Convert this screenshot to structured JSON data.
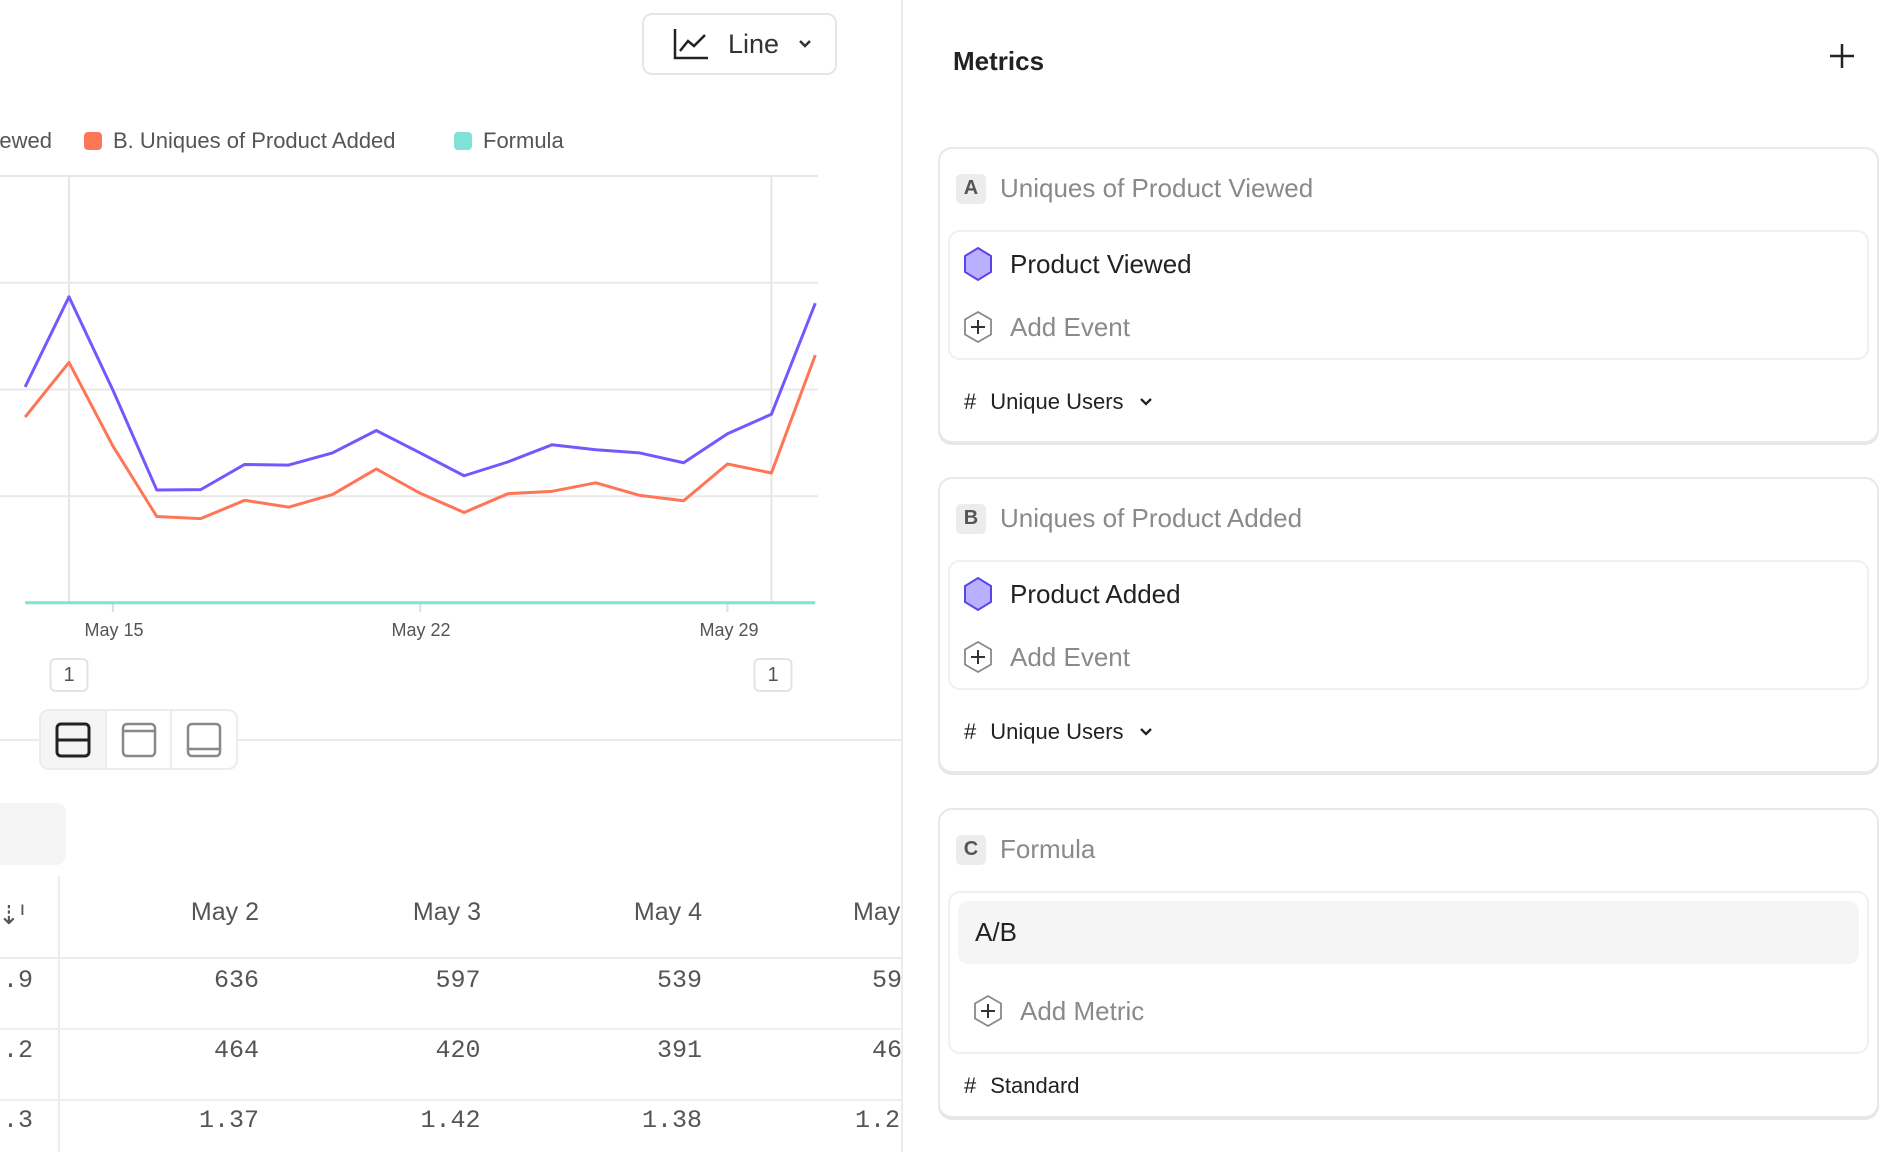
{
  "toolbar": {
    "chart_type": "Line",
    "chart_type_icon": "line-chart-icon"
  },
  "legend": [
    {
      "label": "A. Uniques of Product Viewed",
      "color": "#7856ff"
    },
    {
      "label": "B. Uniques of Product Added",
      "color": "#ff7557"
    },
    {
      "label": "Formula",
      "color": "#80e1d9"
    }
  ],
  "chart_data": {
    "type": "line",
    "title": "",
    "xlabel": "",
    "ylabel": "",
    "ylim": [
      0,
      2000
    ],
    "grid": true,
    "legend_position": "top-left",
    "x": [
      "May 13",
      "May 14",
      "May 15",
      "May 16",
      "May 17",
      "May 18",
      "May 19",
      "May 20",
      "May 21",
      "May 22",
      "May 23",
      "May 24",
      "May 25",
      "May 26",
      "May 27",
      "May 28",
      "May 29",
      "May 30",
      "May 31"
    ],
    "x_tick_labels": [
      "May 15",
      "May 22",
      "May 29"
    ],
    "series": [
      {
        "name": "A. Uniques of Product Viewed",
        "color": "#7856ff",
        "values": [
          1012,
          1434,
          997,
          529,
          531,
          649,
          646,
          703,
          808,
          703,
          596,
          661,
          741,
          718,
          703,
          657,
          793,
          884,
          1404
        ]
      },
      {
        "name": "B. Uniques of Product Added",
        "color": "#ff7557",
        "values": [
          871,
          1127,
          735,
          405,
          395,
          481,
          449,
          508,
          628,
          514,
          424,
          512,
          523,
          563,
          504,
          479,
          651,
          609,
          1161
        ]
      },
      {
        "name": "Formula",
        "color": "#80e1d9",
        "values": [
          1.4,
          1.4,
          1.4,
          1.4,
          1.4,
          1.4,
          1.4,
          1.4,
          1.4,
          1.4,
          1.4,
          1.4,
          1.4,
          1.4,
          1.4,
          1.4,
          1.4,
          1.4,
          1.4
        ]
      }
    ],
    "annotations": [
      {
        "x": "May 14",
        "label": "1"
      },
      {
        "x": "May 30",
        "label": "1"
      }
    ]
  },
  "table": {
    "columns": [
      "May 2",
      "May 3",
      "May 4",
      "May"
    ],
    "first_col": [
      ".9",
      ".2",
      ".3"
    ],
    "rows": [
      [
        "636",
        "597",
        "539",
        "59"
      ],
      [
        "464",
        "420",
        "391",
        "46"
      ],
      [
        "1.37",
        "1.42",
        "1.38",
        "1.2"
      ]
    ]
  },
  "metrics": {
    "title": "Metrics",
    "cards": [
      {
        "letter": "A",
        "name": "Uniques of Product Viewed",
        "event": "Product Viewed",
        "add": "Add Event",
        "agg": "Unique Users"
      },
      {
        "letter": "B",
        "name": "Uniques of Product Added",
        "event": "Product Added",
        "add": "Add Event",
        "agg": "Unique Users"
      }
    ],
    "formula": {
      "letter": "C",
      "name": "Formula",
      "expr": "A/B",
      "add": "Add Metric",
      "agg": "Standard"
    },
    "hash": "#"
  }
}
